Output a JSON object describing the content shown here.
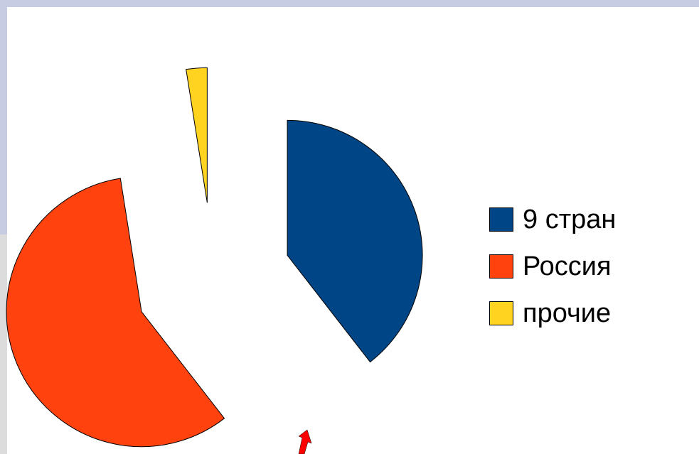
{
  "chart_data": {
    "type": "pie",
    "exploded": true,
    "start_angle_deg": 0,
    "direction": "clockwise",
    "slices": [
      {
        "label": "9 стран",
        "value": 39.5,
        "color": "#004586"
      },
      {
        "label": "Россия",
        "value": 58.0,
        "color": "#ff420e"
      },
      {
        "label": "прочие",
        "value": 2.5,
        "color": "#ffd320"
      }
    ],
    "legend": {
      "position": "right"
    }
  },
  "annotation": {
    "arrow_color": "#ff0000"
  }
}
